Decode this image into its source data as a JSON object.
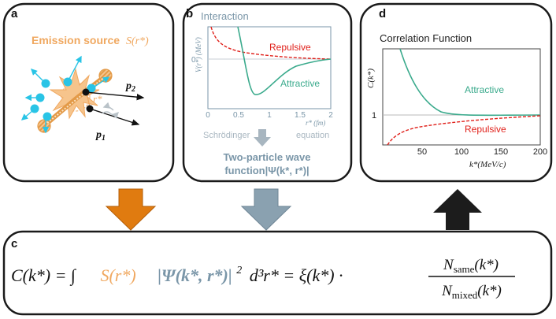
{
  "panel_a": {
    "letter": "a",
    "source_label": "Emission source",
    "source_math": "S(r*)",
    "r_label": "r*",
    "p1_label": "p",
    "p1_sub": "1",
    "p2_label": "p",
    "p2_sub": "2"
  },
  "panel_b": {
    "letter": "b",
    "title": "Interaction",
    "ylabel": "V(r*) (MeV)",
    "ytick0": "0",
    "xlabel": "r* (fm)",
    "xticks": [
      "0",
      "0.5",
      "1",
      "1.5",
      "2"
    ],
    "repulsive": "Repulsive",
    "attractive": "Attractive",
    "schrodinger": "Schrödinger",
    "equation": "equation",
    "wave_line1": "Two-particle wave",
    "wave_line2": "function|Ψ(k*, r*)|"
  },
  "panel_d": {
    "letter": "d",
    "title": "Correlation Function",
    "ylabel": "C(k*)",
    "ytick1": "1",
    "xticks": [
      "50",
      "100",
      "150",
      "200"
    ],
    "xlabel": "k*(MeV/c)",
    "attractive": "Attractive",
    "repulsive": "Repulsive"
  },
  "panel_c": {
    "letter": "c",
    "eq_lhs": "C(k*) = ∫",
    "eq_source": "S(r*)",
    "eq_wave": "|Ψ(k*, r*)|",
    "eq_sq": "2",
    "eq_mid": "d³r* = ξ(k*) ·",
    "num": "N",
    "num_sub": "same",
    "num_tail": "(k*)",
    "den": "N",
    "den_sub": "mixed",
    "den_tail": "(k*)"
  },
  "colors": {
    "orange": "#f0a860",
    "orange_dark": "#e07b10",
    "cyan": "#29c4e6",
    "red": "#e0201a",
    "green": "#3aaa8c",
    "steel": "#7a96a8",
    "dark": "#222222"
  }
}
